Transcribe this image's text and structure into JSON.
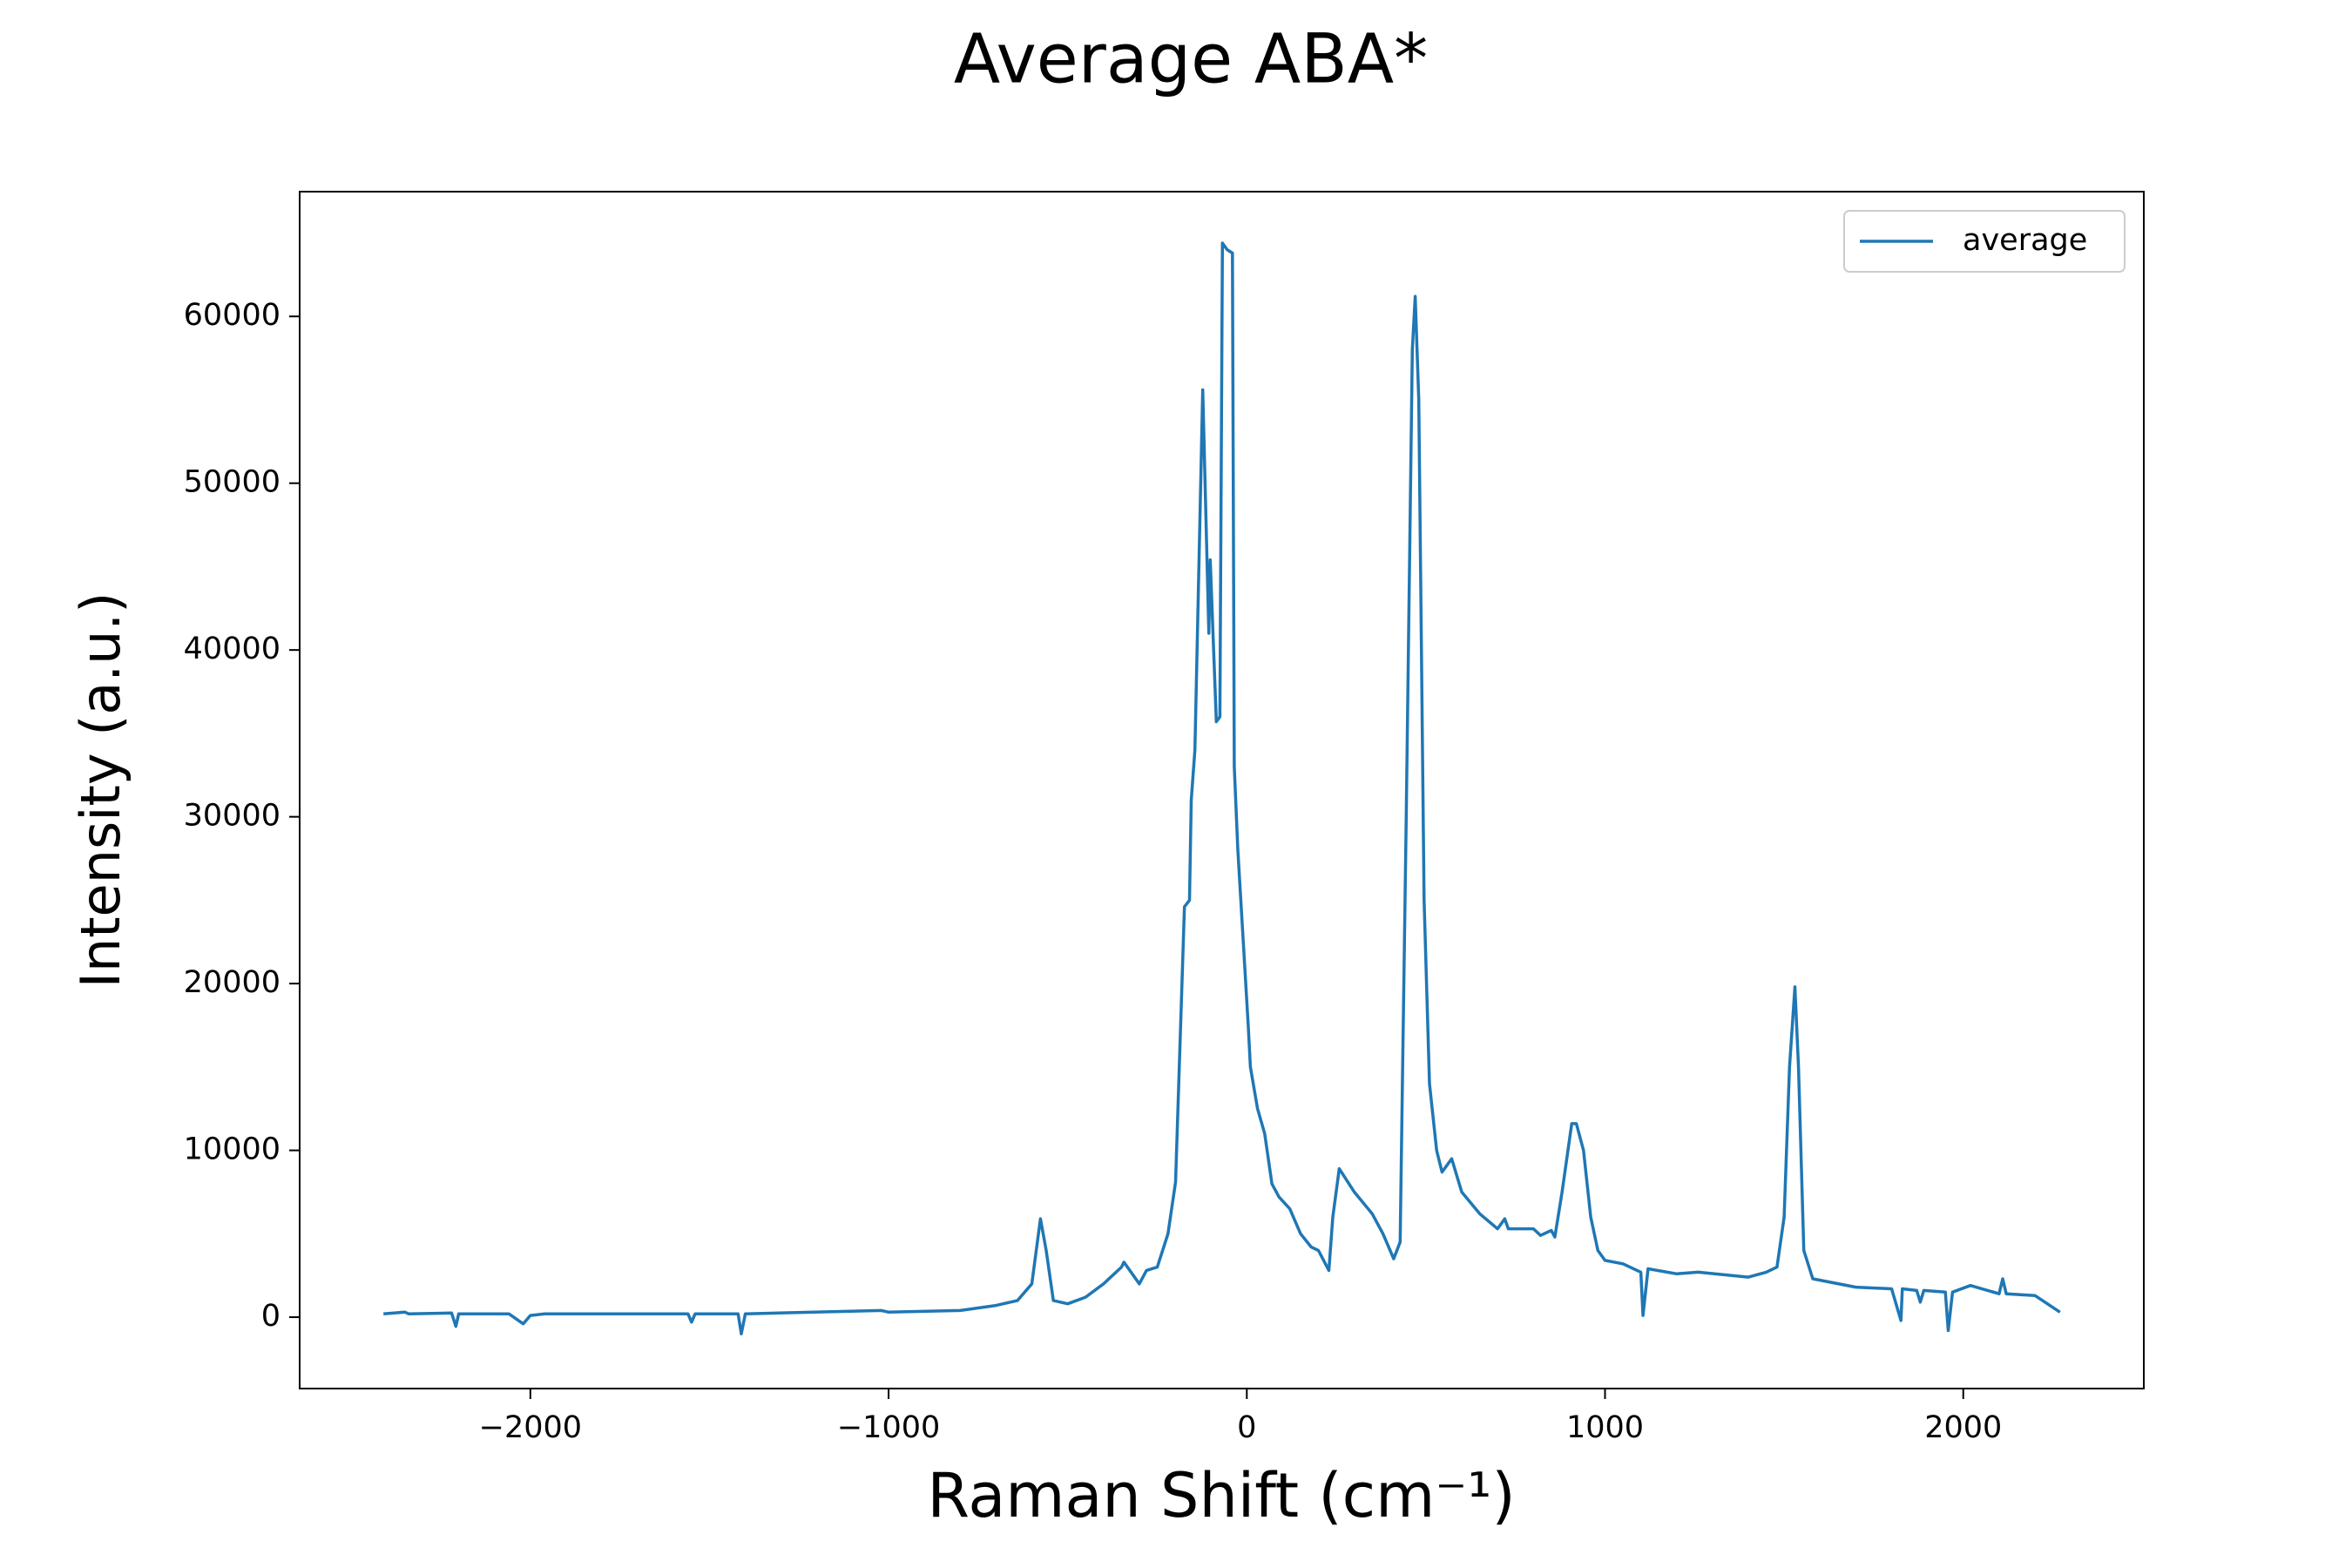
{
  "chart_data": {
    "type": "line",
    "title": "Average ABA*",
    "xlabel": "Raman Shift (cm⁻¹)",
    "ylabel": "Intensity (a.u.)",
    "x": [
      -2410,
      -2350,
      -2340,
      -2220,
      -2208,
      -2200,
      -2060,
      -2020,
      -2000,
      -1960,
      -1560,
      -1550,
      -1540,
      -1420,
      -1411,
      -1400,
      -1020,
      -1000,
      -800,
      -700,
      -640,
      -600,
      -576,
      -560,
      -540,
      -500,
      -450,
      -400,
      -350,
      -343,
      -300,
      -280,
      -250,
      -220,
      -199,
      -174,
      -160,
      -155,
      -145,
      -123,
      -106,
      -102,
      -85,
      -75,
      -68,
      -55,
      -40,
      -35,
      -25,
      4,
      10,
      30,
      50,
      70,
      90,
      120,
      150,
      180,
      200,
      229,
      240,
      258,
      300,
      350,
      380,
      410,
      428,
      445,
      462,
      470,
      480,
      495,
      510,
      530,
      545,
      572,
      600,
      650,
      700,
      720,
      730,
      800,
      820,
      850,
      860,
      880,
      907,
      920,
      940,
      960,
      980,
      1000,
      1050,
      1100,
      1106,
      1120,
      1200,
      1260,
      1400,
      1450,
      1480,
      1500,
      1515,
      1530,
      1540,
      1555,
      1580,
      1700,
      1800,
      1826,
      1830,
      1870,
      1880,
      1890,
      1950,
      1958,
      1970,
      2020,
      2100,
      2110,
      2120,
      2200,
      2270
    ],
    "series": [
      {
        "name": "average",
        "color": "#1f77b4",
        "values": [
          200,
          300,
          200,
          250,
          -550,
          200,
          200,
          -400,
          100,
          200,
          200,
          -300,
          200,
          200,
          -1000,
          200,
          400,
          300,
          400,
          700,
          1000,
          2000,
          5900,
          4000,
          1000,
          800,
          1200,
          2000,
          3000,
          3300,
          2000,
          2800,
          3000,
          5000,
          8100,
          24600,
          25000,
          31000,
          34000,
          55600,
          41000,
          45400,
          35700,
          36000,
          64400,
          64000,
          63800,
          33000,
          28000,
          17500,
          15000,
          12500,
          11000,
          8000,
          7200,
          6500,
          5000,
          4200,
          4000,
          2800,
          6000,
          8900,
          7500,
          6200,
          5000,
          3500,
          4500,
          30000,
          58000,
          61200,
          55000,
          25000,
          14000,
          10000,
          8700,
          9500,
          7500,
          6200,
          5300,
          5900,
          5300,
          5300,
          4900,
          5200,
          4800,
          7500,
          11600,
          11600,
          10000,
          6000,
          4000,
          3400,
          3200,
          2700,
          100,
          2900,
          2600,
          2700,
          2400,
          2700,
          3000,
          6000,
          15000,
          19800,
          15000,
          4000,
          2300,
          1800,
          1700,
          -200,
          1700,
          1600,
          900,
          1600,
          1500,
          -800,
          1500,
          1900,
          1400,
          2300,
          1400,
          1300,
          300
        ]
      }
    ],
    "xlim": [
      -2644,
      2504
    ],
    "ylim": [
      -4280,
      67480
    ],
    "xticks": [
      {
        "value": -2000,
        "label": "−2000"
      },
      {
        "value": -1000,
        "label": "−1000"
      },
      0,
      1000,
      2000
    ],
    "yticks": [
      0,
      10000,
      20000,
      30000,
      40000,
      50000,
      60000
    ],
    "legend": "upper right"
  }
}
